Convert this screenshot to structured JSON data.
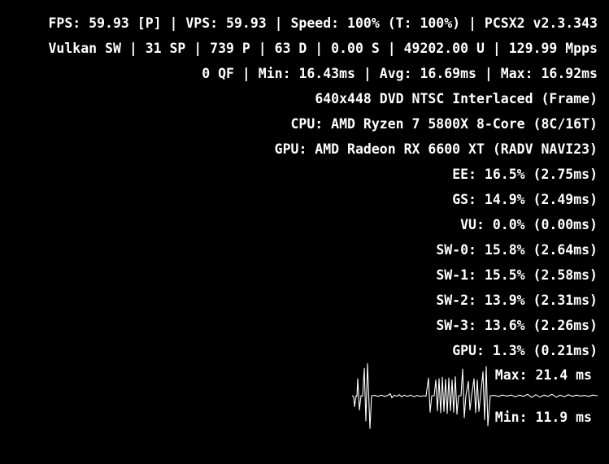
{
  "colors": {
    "background": "#000000",
    "text": "#ffffff",
    "graph_line": "#ffffff"
  },
  "overlay": {
    "stat_lines": [
      "FPS: 59.93 [P] | VPS: 59.93 | Speed: 100% (T: 100%) | PCSX2 v2.3.343",
      "Vulkan SW | 31 SP | 739 P | 63 D | 0.00 S | 49202.00 U | 129.99 Mpps",
      "0 QF | Min: 16.43ms | Avg: 16.69ms | Max: 16.92ms",
      "640x448 DVD NTSC Interlaced (Frame)",
      "CPU: AMD Ryzen 7 5800X 8-Core (8C/16T)",
      "GPU: AMD Radeon RX 6600 XT (RADV NAVI23)",
      "EE: 16.5% (2.75ms)",
      "GS: 14.9% (2.49ms)",
      "VU: 0.0% (0.00ms)",
      "SW-0: 15.8% (2.64ms)",
      "SW-1: 15.5% (2.58ms)",
      "SW-2: 13.9% (2.31ms)",
      "SW-3: 13.6% (2.26ms)",
      "GPU: 1.3% (0.21ms)"
    ]
  },
  "chart_data": {
    "type": "line",
    "title": "Frame time graph",
    "unit": "ms",
    "grid": false,
    "legend_position": "right-inside",
    "baseline_ms": 16.7,
    "max_ms": 21.4,
    "min_ms": 11.9,
    "max_label": "Max: 21.4 ms",
    "min_label": "Min: 11.9 ms",
    "ylim": [
      11.2,
      22.3
    ],
    "samples": [
      [
        0,
        16.7
      ],
      [
        2,
        16.55
      ],
      [
        3,
        15.1
      ],
      [
        5,
        16.7
      ],
      [
        6,
        16.6
      ],
      [
        7,
        19.2
      ],
      [
        9,
        14.6
      ],
      [
        11,
        16.7
      ],
      [
        13,
        16.65
      ],
      [
        15,
        20.7
      ],
      [
        17,
        13.0
      ],
      [
        19,
        21.4
      ],
      [
        22,
        11.9
      ],
      [
        24,
        16.7
      ],
      [
        28,
        16.75
      ],
      [
        32,
        16.6
      ],
      [
        36,
        16.8
      ],
      [
        40,
        16.6
      ],
      [
        44,
        16.75
      ],
      [
        47,
        17.0
      ],
      [
        49,
        16.4
      ],
      [
        52,
        16.8
      ],
      [
        55,
        16.6
      ],
      [
        58,
        16.85
      ],
      [
        61,
        16.55
      ],
      [
        64,
        16.8
      ],
      [
        68,
        16.6
      ],
      [
        72,
        16.8
      ],
      [
        76,
        16.55
      ],
      [
        80,
        16.75
      ],
      [
        84,
        16.6
      ],
      [
        88,
        16.7
      ],
      [
        91,
        16.65
      ],
      [
        94,
        19.3
      ],
      [
        96,
        14.3
      ],
      [
        98,
        16.7
      ],
      [
        101,
        16.7
      ],
      [
        103,
        19.0
      ],
      [
        105,
        14.5
      ],
      [
        107,
        19.2
      ],
      [
        109,
        14.2
      ],
      [
        111,
        19.4
      ],
      [
        113,
        14.4
      ],
      [
        115,
        19.1
      ],
      [
        117,
        14.1
      ],
      [
        119,
        19.3
      ],
      [
        121,
        14.5
      ],
      [
        123,
        19.0
      ],
      [
        125,
        14.3
      ],
      [
        127,
        19.5
      ],
      [
        129,
        14.0
      ],
      [
        131,
        16.7
      ],
      [
        134,
        16.7
      ],
      [
        136,
        20.6
      ],
      [
        138,
        13.5
      ],
      [
        140,
        16.7
      ],
      [
        143,
        18.8
      ],
      [
        145,
        14.6
      ],
      [
        147,
        16.7
      ],
      [
        150,
        19.2
      ],
      [
        152,
        14.2
      ],
      [
        154,
        19.0
      ],
      [
        156,
        14.4
      ],
      [
        158,
        16.7
      ],
      [
        161,
        20.2
      ],
      [
        163,
        13.2
      ],
      [
        165,
        21.0
      ],
      [
        167,
        12.3
      ],
      [
        170,
        16.7
      ],
      [
        175,
        16.75
      ],
      [
        180,
        16.6
      ],
      [
        185,
        16.8
      ],
      [
        190,
        16.65
      ],
      [
        196,
        16.8
      ],
      [
        201,
        16.55
      ],
      [
        206,
        16.8
      ],
      [
        211,
        16.6
      ],
      [
        216,
        16.9
      ],
      [
        221,
        16.45
      ],
      [
        226,
        16.85
      ],
      [
        231,
        16.5
      ],
      [
        236,
        16.8
      ],
      [
        241,
        16.6
      ],
      [
        246,
        16.9
      ],
      [
        251,
        16.5
      ],
      [
        256,
        16.8
      ],
      [
        261,
        16.55
      ],
      [
        266,
        16.85
      ],
      [
        271,
        16.6
      ],
      [
        276,
        16.8
      ],
      [
        281,
        16.65
      ],
      [
        286,
        16.75
      ],
      [
        291,
        16.6
      ],
      [
        296,
        16.8
      ],
      [
        302,
        16.7
      ]
    ]
  }
}
